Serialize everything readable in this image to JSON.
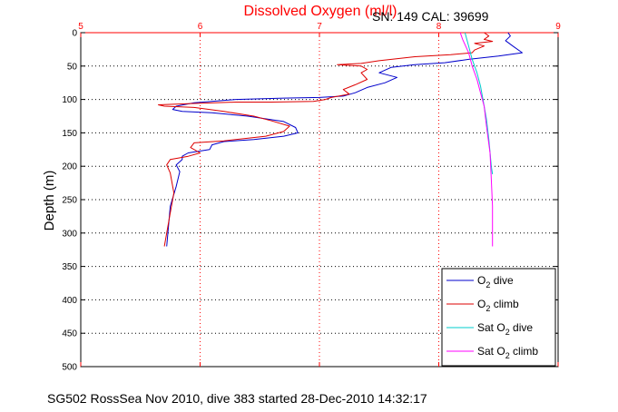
{
  "chart_data": {
    "type": "line",
    "title": "Dissolved Oxygen (ml/l)",
    "title_color": "#ff0000",
    "serial_label": "SN: 149  CAL: 39699",
    "ylabel": "Depth (m)",
    "footer": "SG502 RossSea Nov 2010, dive 383 started 28-Dec-2010 14:32:17",
    "xlim": [
      5,
      9
    ],
    "ylim": [
      0,
      500
    ],
    "y_reversed": true,
    "x_axis_position": "top",
    "x_axis_color": "#ff0000",
    "x_ticks": [
      "5",
      "6",
      "7",
      "8",
      "9"
    ],
    "y_ticks": [
      "0",
      "50",
      "100",
      "150",
      "200",
      "250",
      "300",
      "350",
      "400",
      "450",
      "500"
    ],
    "grid": true,
    "legend_position": "bottom-right",
    "series": [
      {
        "name_main": "O",
        "name_sub": "2",
        "name_suffix": " dive",
        "color": "#0000cc",
        "points": [
          [
            8.58,
            0
          ],
          [
            8.6,
            5
          ],
          [
            8.56,
            12
          ],
          [
            8.62,
            20
          ],
          [
            8.7,
            30
          ],
          [
            8.5,
            35
          ],
          [
            8.25,
            40
          ],
          [
            8.05,
            45
          ],
          [
            7.8,
            48
          ],
          [
            7.6,
            52
          ],
          [
            7.5,
            60
          ],
          [
            7.65,
            67
          ],
          [
            7.55,
            75
          ],
          [
            7.4,
            82
          ],
          [
            7.3,
            90
          ],
          [
            7.2,
            95
          ],
          [
            7.0,
            97
          ],
          [
            6.7,
            98
          ],
          [
            6.3,
            100
          ],
          [
            5.95,
            105
          ],
          [
            5.8,
            110
          ],
          [
            5.77,
            115
          ],
          [
            5.85,
            118
          ],
          [
            6.1,
            120
          ],
          [
            6.4,
            125
          ],
          [
            6.7,
            133
          ],
          [
            6.8,
            142
          ],
          [
            6.82,
            150
          ],
          [
            6.7,
            155
          ],
          [
            6.45,
            160
          ],
          [
            6.2,
            163
          ],
          [
            6.1,
            168
          ],
          [
            6.08,
            175
          ],
          [
            5.9,
            180
          ],
          [
            5.85,
            185
          ],
          [
            5.85,
            190
          ],
          [
            5.8,
            198
          ],
          [
            5.83,
            208
          ],
          [
            5.8,
            230
          ],
          [
            5.75,
            260
          ],
          [
            5.73,
            300
          ],
          [
            5.72,
            320
          ]
        ]
      },
      {
        "name_main": "O",
        "name_sub": "2",
        "name_suffix": " climb",
        "color": "#dd0000",
        "points": [
          [
            8.38,
            0
          ],
          [
            8.42,
            5
          ],
          [
            8.38,
            10
          ],
          [
            8.45,
            13
          ],
          [
            8.3,
            16
          ],
          [
            8.38,
            20
          ],
          [
            8.3,
            26
          ],
          [
            8.28,
            30
          ],
          [
            8.1,
            33
          ],
          [
            7.8,
            36
          ],
          [
            7.5,
            42
          ],
          [
            7.35,
            46
          ],
          [
            7.15,
            48
          ],
          [
            7.35,
            50
          ],
          [
            7.4,
            55
          ],
          [
            7.35,
            60
          ],
          [
            7.4,
            70
          ],
          [
            7.3,
            78
          ],
          [
            7.2,
            85
          ],
          [
            7.25,
            92
          ],
          [
            7.1,
            97
          ],
          [
            7.05,
            100
          ],
          [
            6.95,
            103
          ],
          [
            6.6,
            104
          ],
          [
            6.3,
            104
          ],
          [
            5.95,
            106
          ],
          [
            5.65,
            108
          ],
          [
            5.7,
            110
          ],
          [
            5.95,
            112
          ],
          [
            6.2,
            118
          ],
          [
            6.45,
            125
          ],
          [
            6.6,
            132
          ],
          [
            6.75,
            140
          ],
          [
            6.7,
            148
          ],
          [
            6.55,
            155
          ],
          [
            6.2,
            162
          ],
          [
            5.95,
            165
          ],
          [
            5.92,
            172
          ],
          [
            6.0,
            180
          ],
          [
            5.9,
            185
          ],
          [
            5.75,
            190
          ],
          [
            5.72,
            198
          ],
          [
            5.75,
            210
          ],
          [
            5.78,
            240
          ],
          [
            5.75,
            270
          ],
          [
            5.72,
            300
          ],
          [
            5.7,
            320
          ]
        ]
      },
      {
        "name_prefix": "Sat ",
        "name_main": "O",
        "name_sub": "2",
        "name_suffix": " dive",
        "color": "#00cccc",
        "points": [
          [
            8.22,
            0
          ],
          [
            8.25,
            20
          ],
          [
            8.28,
            40
          ],
          [
            8.32,
            60
          ],
          [
            8.35,
            80
          ],
          [
            8.37,
            100
          ],
          [
            8.4,
            130
          ],
          [
            8.42,
            160
          ],
          [
            8.44,
            200
          ],
          [
            8.45,
            212
          ]
        ]
      },
      {
        "name_prefix": "Sat ",
        "name_main": "O",
        "name_sub": "2",
        "name_suffix": " climb",
        "color": "#ff00ff",
        "points": [
          [
            8.18,
            0
          ],
          [
            8.2,
            10
          ],
          [
            8.25,
            30
          ],
          [
            8.28,
            50
          ],
          [
            8.32,
            70
          ],
          [
            8.35,
            90
          ],
          [
            8.38,
            110
          ],
          [
            8.4,
            140
          ],
          [
            8.43,
            180
          ],
          [
            8.44,
            220
          ],
          [
            8.45,
            260
          ],
          [
            8.45,
            300
          ],
          [
            8.45,
            320
          ]
        ]
      }
    ]
  }
}
